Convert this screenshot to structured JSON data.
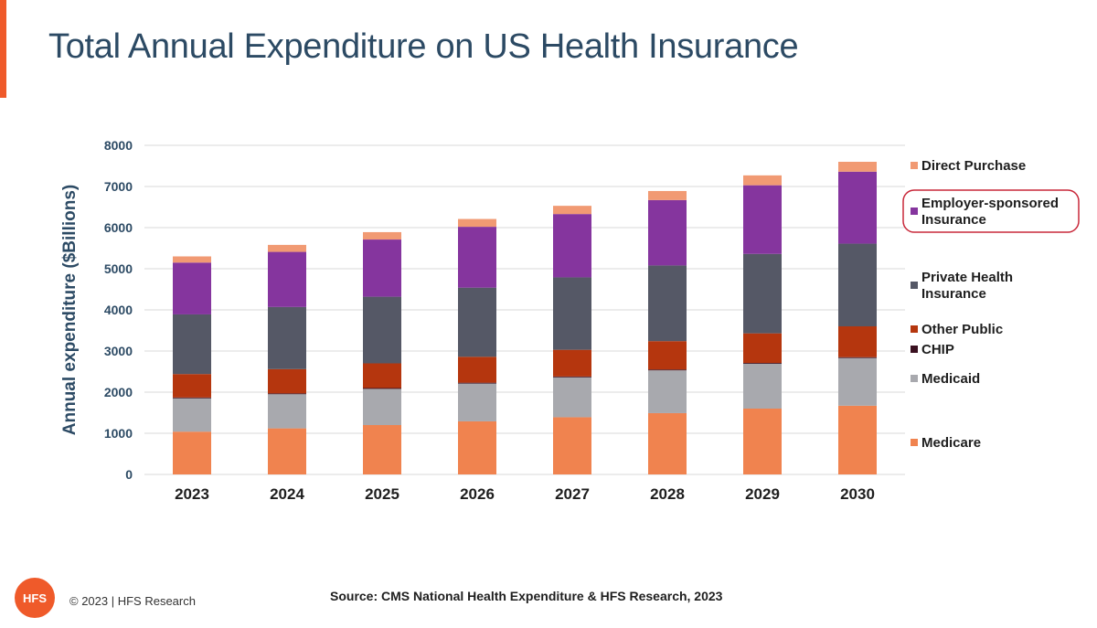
{
  "page": {
    "title": "Total Annual Expenditure on US Health Insurance"
  },
  "footer": {
    "logo_text": "HFS",
    "copyright": "© 2023 | HFS Research",
    "source": "Source:  CMS National Health Expenditure & HFS Research, 2023"
  },
  "chart_data": {
    "type": "bar",
    "stacked": true,
    "title": "Total Annual Expenditure on US Health Insurance",
    "xlabel": "",
    "ylabel": "Annual expenditure ($Billions)",
    "ylim": [
      0,
      8000
    ],
    "yticks": [
      0,
      1000,
      2000,
      3000,
      4000,
      5000,
      6000,
      7000,
      8000
    ],
    "grid": true,
    "legend_position": "right",
    "categories": [
      "2023",
      "2024",
      "2025",
      "2026",
      "2027",
      "2028",
      "2029",
      "2030"
    ],
    "series": [
      {
        "name": "Medicare",
        "color": "#f0834f",
        "values": [
          1040,
          1120,
          1200,
          1290,
          1390,
          1490,
          1600,
          1670
        ]
      },
      {
        "name": "Medicaid",
        "color": "#a8a9ae",
        "values": [
          810,
          830,
          880,
          920,
          970,
          1040,
          1090,
          1160
        ]
      },
      {
        "name": "CHIP",
        "color": "#3a1020",
        "values": [
          20,
          20,
          20,
          20,
          20,
          20,
          20,
          20
        ]
      },
      {
        "name": "Other Public",
        "color": "#b5360e",
        "values": [
          570,
          590,
          600,
          630,
          650,
          690,
          720,
          750
        ]
      },
      {
        "name": "Private Health Insurance",
        "color": "#555866",
        "values": [
          1450,
          1510,
          1620,
          1680,
          1760,
          1840,
          1930,
          2010
        ]
      },
      {
        "name": "Employer-sponsored Insurance",
        "color": "#85359e",
        "values": [
          1260,
          1340,
          1390,
          1480,
          1540,
          1590,
          1670,
          1750
        ]
      },
      {
        "name": "Direct Purchase",
        "color": "#f19a73",
        "values": [
          150,
          170,
          180,
          190,
          200,
          220,
          240,
          240
        ]
      }
    ],
    "legend": [
      {
        "label": "Direct Purchase",
        "color": "#f19a73",
        "highlighted": false
      },
      {
        "label": "Employer-sponsored\nInsurance",
        "color": "#85359e",
        "highlighted": true
      },
      {
        "label": "Private Health\nInsurance",
        "color": "#555866",
        "highlighted": false
      },
      {
        "label": "Other Public",
        "color": "#b5360e",
        "highlighted": false
      },
      {
        "label": "CHIP",
        "color": "#3a1020",
        "highlighted": false
      },
      {
        "label": "Medicaid",
        "color": "#a8a9ae",
        "highlighted": false
      },
      {
        "label": "Medicare",
        "color": "#f0834f",
        "highlighted": false
      }
    ],
    "highlight_color": "#c8283a"
  }
}
